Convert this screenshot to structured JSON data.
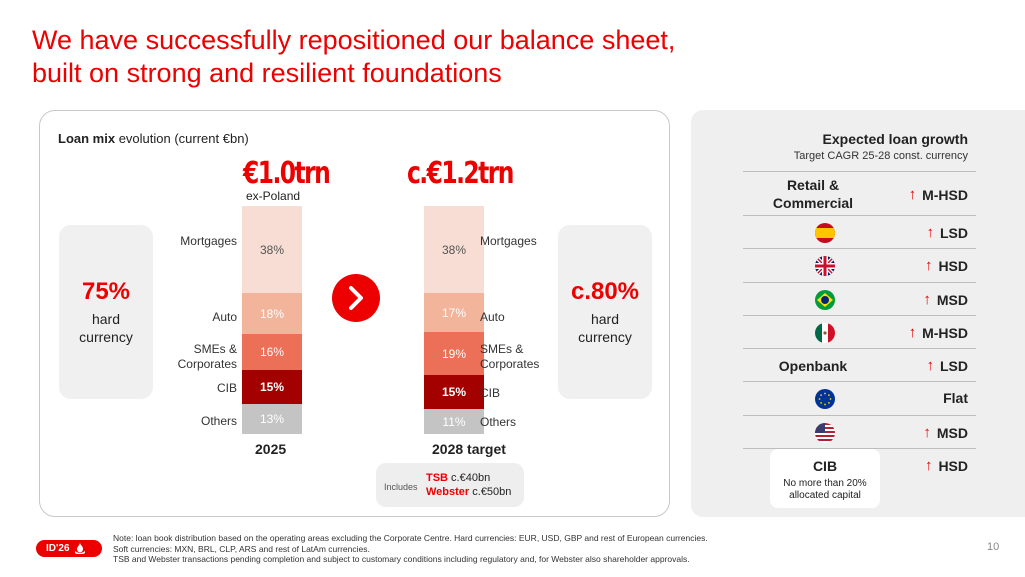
{
  "title": {
    "line1": "We have successfully repositioned our balance sheet,",
    "line2": "built on strong and resilient foundations"
  },
  "left_panel": {
    "heading_bold": "Loan mix",
    "heading_rest": " evolution (current €bn)",
    "left_hard_currency": {
      "pct": "75%",
      "line1": "hard",
      "line2": "currency"
    },
    "right_hard_currency": {
      "pct": "c.80%",
      "line1": "hard",
      "line2": "currency"
    },
    "total_2025": "€1.0trn",
    "total_2025_sub": "ex-Poland",
    "total_2028": "c.€1.2trn",
    "year_2025": "2025",
    "year_2028": "2028 target",
    "categories": {
      "mortgages": "Mortgages",
      "auto": "Auto",
      "smes_line1": "SMEs &",
      "smes_line2": "Corporates",
      "cib": "CIB",
      "others": "Others"
    },
    "includes": {
      "label": "Includes",
      "tsb_name": "TSB",
      "tsb_value": " c.€40bn",
      "webster_name": "Webster",
      "webster_value": " c.€50bn"
    }
  },
  "chart_data": {
    "type": "bar",
    "stacked": true,
    "title": "Loan mix evolution (current €bn)",
    "categories": [
      "2025",
      "2028 target"
    ],
    "series": [
      {
        "name": "Mortgages",
        "values": [
          38,
          38
        ],
        "labels": [
          "38%",
          "38%"
        ],
        "color": "#f7ddd3",
        "text_color": "#555555"
      },
      {
        "name": "Auto",
        "values": [
          18,
          17
        ],
        "labels": [
          "18%",
          "17%"
        ],
        "color": "#f2b49a",
        "text_color": "#ffffff"
      },
      {
        "name": "SMEs & Corporates",
        "values": [
          16,
          19
        ],
        "labels": [
          "16%",
          "19%"
        ],
        "color": "#ec6f58",
        "text_color": "#ffffff"
      },
      {
        "name": "CIB",
        "values": [
          15,
          15
        ],
        "labels": [
          "15%",
          "15%"
        ],
        "color": "#a30000",
        "text_color": "#ffffff"
      },
      {
        "name": "Others",
        "values": [
          13,
          11
        ],
        "labels": [
          "13%",
          "11%"
        ],
        "color": "#c4c4c4",
        "text_color": "#ffffff"
      }
    ],
    "totals": [
      "€1.0trn",
      "c.€1.2trn"
    ]
  },
  "right_panel": {
    "title": "Expected loan growth",
    "subtitle": "Target CAGR 25-28 const. currency",
    "rows": [
      {
        "label_line1": "Retail &",
        "label_line2": "Commercial",
        "value": "M-HSD",
        "arrow": "↑"
      },
      {
        "flag": "spain-flag",
        "value": "LSD",
        "arrow": "↑"
      },
      {
        "flag": "uk-flag",
        "value": "HSD",
        "arrow": "↑"
      },
      {
        "flag": "brazil-flag",
        "value": "MSD",
        "arrow": "↑"
      },
      {
        "flag": "mexico-flag",
        "value": "M-HSD",
        "arrow": "↑"
      },
      {
        "label": "Openbank",
        "value": "LSD",
        "arrow": "↑"
      },
      {
        "flag": "eu-flag",
        "value": "Flat"
      },
      {
        "flag": "us-flag",
        "value": "MSD",
        "arrow": "↑"
      },
      {
        "label": "CIB",
        "note_line1": "No more than 20%",
        "note_line2": "allocated capital",
        "value": "HSD",
        "arrow": "↑"
      }
    ]
  },
  "footer": {
    "logo_text": "ID'26",
    "note1": "Note: loan book distribution based on the operating areas excluding the Corporate Centre. Hard currencies: EUR, USD, GBP and rest of European currencies.",
    "note2": "Soft currencies: MXN, BRL, CLP, ARS and rest of LatAm currencies.",
    "note3": "TSB and Webster transactions pending completion and subject to customary conditions including regulatory and, for Webster also shareholder approvals.",
    "page": "10"
  },
  "colors": {
    "accent": "#ec0000"
  }
}
